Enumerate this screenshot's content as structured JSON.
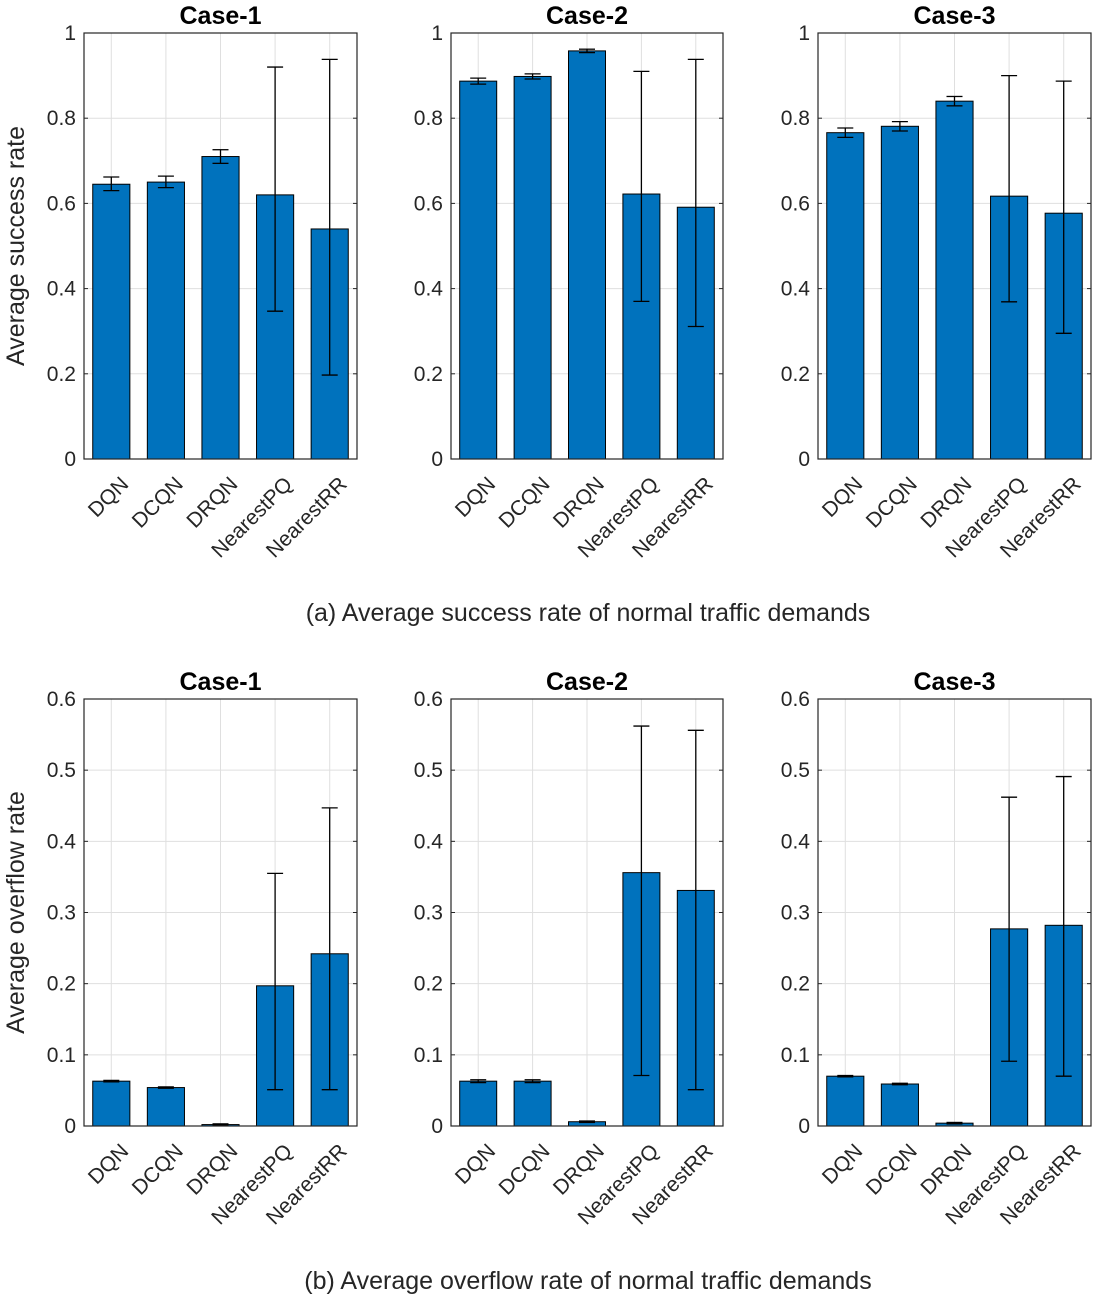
{
  "figure": {
    "caption_a": "(a) Average success rate of normal traffic demands",
    "caption_b": "(b) Average overflow rate of normal traffic demands"
  },
  "chart_data": [
    {
      "type": "bar",
      "title": "Case-1",
      "ylabel": "Average success rate",
      "xlabel": "",
      "categories": [
        "DQN",
        "DCQN",
        "DRQN",
        "NearestPQ",
        "NearestRR"
      ],
      "values": [
        0.645,
        0.65,
        0.71,
        0.62,
        0.54
      ],
      "error_low": [
        0.63,
        0.637,
        0.694,
        0.347,
        0.197
      ],
      "error_high": [
        0.662,
        0.664,
        0.726,
        0.92,
        0.938
      ],
      "ylim": [
        0,
        1
      ],
      "yticks": [
        "0",
        "0.2",
        "0.4",
        "0.6",
        "0.8",
        "1"
      ],
      "ytick_values": [
        0,
        0.2,
        0.4,
        0.6,
        0.8,
        1
      ],
      "grid": true,
      "color": "#0072BD"
    },
    {
      "type": "bar",
      "title": "Case-2",
      "ylabel": "",
      "xlabel": "",
      "categories": [
        "DQN",
        "DCQN",
        "DRQN",
        "NearestPQ",
        "NearestRR"
      ],
      "values": [
        0.887,
        0.898,
        0.958,
        0.622,
        0.591
      ],
      "error_low": [
        0.88,
        0.892,
        0.954,
        0.37,
        0.311
      ],
      "error_high": [
        0.894,
        0.904,
        0.962,
        0.91,
        0.938
      ],
      "ylim": [
        0,
        1
      ],
      "yticks": [
        "0",
        "0.2",
        "0.4",
        "0.6",
        "0.8",
        "1"
      ],
      "ytick_values": [
        0,
        0.2,
        0.4,
        0.6,
        0.8,
        1
      ],
      "grid": true,
      "color": "#0072BD"
    },
    {
      "type": "bar",
      "title": "Case-3",
      "ylabel": "",
      "xlabel": "",
      "categories": [
        "DQN",
        "DCQN",
        "DRQN",
        "NearestPQ",
        "NearestRR"
      ],
      "values": [
        0.766,
        0.781,
        0.84,
        0.617,
        0.577
      ],
      "error_low": [
        0.755,
        0.77,
        0.829,
        0.369,
        0.295
      ],
      "error_high": [
        0.777,
        0.792,
        0.851,
        0.9,
        0.887
      ],
      "ylim": [
        0,
        1
      ],
      "yticks": [
        "0",
        "0.2",
        "0.4",
        "0.6",
        "0.8",
        "1"
      ],
      "ytick_values": [
        0,
        0.2,
        0.4,
        0.6,
        0.8,
        1
      ],
      "grid": true,
      "color": "#0072BD"
    },
    {
      "type": "bar",
      "title": "Case-1",
      "ylabel": "Average overflow rate",
      "xlabel": "",
      "categories": [
        "DQN",
        "DCQN",
        "DRQN",
        "NearestPQ",
        "NearestRR"
      ],
      "values": [
        0.063,
        0.054,
        0.002,
        0.197,
        0.242
      ],
      "error_low": [
        0.062,
        0.053,
        0.001,
        0.051,
        0.051
      ],
      "error_high": [
        0.064,
        0.055,
        0.003,
        0.355,
        0.447
      ],
      "ylim": [
        0,
        0.6
      ],
      "yticks": [
        "0",
        "0.1",
        "0.2",
        "0.3",
        "0.4",
        "0.5",
        "0.6"
      ],
      "ytick_values": [
        0,
        0.1,
        0.2,
        0.3,
        0.4,
        0.5,
        0.6
      ],
      "grid": true,
      "color": "#0072BD"
    },
    {
      "type": "bar",
      "title": "Case-2",
      "ylabel": "",
      "xlabel": "",
      "categories": [
        "DQN",
        "DCQN",
        "DRQN",
        "NearestPQ",
        "NearestRR"
      ],
      "values": [
        0.063,
        0.063,
        0.006,
        0.356,
        0.331
      ],
      "error_low": [
        0.061,
        0.061,
        0.005,
        0.071,
        0.051
      ],
      "error_high": [
        0.065,
        0.065,
        0.007,
        0.562,
        0.556
      ],
      "ylim": [
        0,
        0.6
      ],
      "yticks": [
        "0",
        "0.1",
        "0.2",
        "0.3",
        "0.4",
        "0.5",
        "0.6"
      ],
      "ytick_values": [
        0,
        0.1,
        0.2,
        0.3,
        0.4,
        0.5,
        0.6
      ],
      "grid": true,
      "color": "#0072BD"
    },
    {
      "type": "bar",
      "title": "Case-3",
      "ylabel": "",
      "xlabel": "",
      "categories": [
        "DQN",
        "DCQN",
        "DRQN",
        "NearestPQ",
        "NearestRR"
      ],
      "values": [
        0.07,
        0.059,
        0.004,
        0.277,
        0.282
      ],
      "error_low": [
        0.069,
        0.058,
        0.003,
        0.091,
        0.07
      ],
      "error_high": [
        0.071,
        0.06,
        0.005,
        0.462,
        0.491
      ],
      "ylim": [
        0,
        0.6
      ],
      "yticks": [
        "0",
        "0.1",
        "0.2",
        "0.3",
        "0.4",
        "0.5",
        "0.6"
      ],
      "ytick_values": [
        0,
        0.1,
        0.2,
        0.3,
        0.4,
        0.5,
        0.6
      ],
      "grid": true,
      "color": "#0072BD"
    }
  ]
}
